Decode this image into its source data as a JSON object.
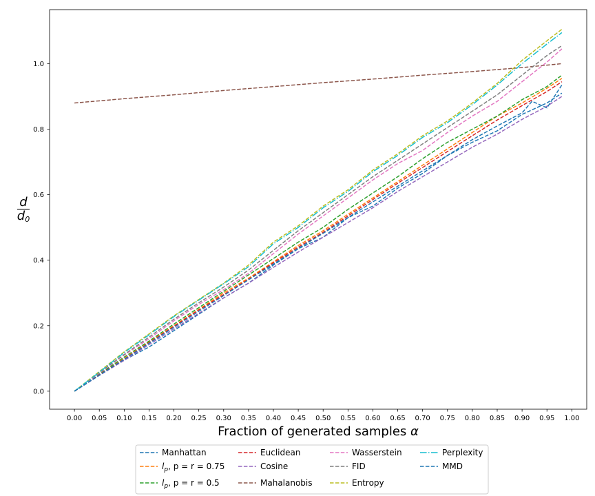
{
  "chart_data": {
    "type": "line",
    "xlabel": "Fraction of generated samples α",
    "ylabel_num": "d",
    "ylabel_den": "d",
    "ylabel_den_sub": "0",
    "xlim": [
      -0.05,
      1.03
    ],
    "ylim": [
      -0.055,
      1.165
    ],
    "xticks": [
      "0.00",
      "0.05",
      "0.10",
      "0.15",
      "0.20",
      "0.25",
      "0.30",
      "0.35",
      "0.40",
      "0.45",
      "0.50",
      "0.55",
      "0.60",
      "0.65",
      "0.70",
      "0.75",
      "0.80",
      "0.85",
      "0.90",
      "0.95",
      "1.00"
    ],
    "yticks": [
      "0.0",
      "0.2",
      "0.4",
      "0.6",
      "0.8",
      "1.0"
    ],
    "legend_position": "bottom-center, outside, 4 columns",
    "series": [
      {
        "name": "Manhattan",
        "color": "#1f77b4",
        "dash": "dashed",
        "x": [
          0,
          0.05,
          0.1,
          0.15,
          0.2,
          0.25,
          0.3,
          0.35,
          0.4,
          0.45,
          0.5,
          0.55,
          0.6,
          0.65,
          0.7,
          0.75,
          0.8,
          0.85,
          0.9,
          0.95,
          0.98
        ],
        "y": [
          0,
          0.05,
          0.095,
          0.135,
          0.185,
          0.235,
          0.285,
          0.33,
          0.385,
          0.435,
          0.47,
          0.53,
          0.565,
          0.62,
          0.665,
          0.72,
          0.76,
          0.795,
          0.845,
          0.88,
          0.91
        ]
      },
      {
        "name": "l_p, p = r = 0.75",
        "label_main": "l",
        "label_sub": "p",
        "label_rest": ", p = r = 0.75",
        "color": "#ff7f0e",
        "dash": "dashed",
        "x": [
          0,
          0.05,
          0.1,
          0.15,
          0.2,
          0.25,
          0.3,
          0.35,
          0.4,
          0.45,
          0.5,
          0.55,
          0.6,
          0.65,
          0.7,
          0.75,
          0.8,
          0.85,
          0.9,
          0.95,
          0.98
        ],
        "y": [
          0,
          0.05,
          0.1,
          0.15,
          0.2,
          0.25,
          0.3,
          0.345,
          0.395,
          0.445,
          0.49,
          0.54,
          0.59,
          0.64,
          0.69,
          0.74,
          0.79,
          0.84,
          0.88,
          0.925,
          0.955
        ]
      },
      {
        "name": "l_p, p = r = 0.5",
        "label_main": "l",
        "label_sub": "p",
        "label_rest": ", p = r = 0.5",
        "color": "#2ca02c",
        "dash": "dashed",
        "x": [
          0,
          0.05,
          0.1,
          0.15,
          0.2,
          0.25,
          0.3,
          0.35,
          0.4,
          0.45,
          0.5,
          0.55,
          0.6,
          0.65,
          0.7,
          0.75,
          0.8,
          0.85,
          0.9,
          0.95,
          0.98
        ],
        "y": [
          0,
          0.052,
          0.104,
          0.153,
          0.205,
          0.255,
          0.305,
          0.355,
          0.405,
          0.455,
          0.5,
          0.555,
          0.605,
          0.655,
          0.71,
          0.76,
          0.8,
          0.84,
          0.89,
          0.93,
          0.965
        ]
      },
      {
        "name": "Euclidean",
        "color": "#d62728",
        "dash": "dashed",
        "x": [
          0,
          0.05,
          0.1,
          0.15,
          0.2,
          0.25,
          0.3,
          0.35,
          0.4,
          0.45,
          0.5,
          0.55,
          0.6,
          0.65,
          0.7,
          0.75,
          0.8,
          0.85,
          0.9,
          0.95,
          0.98
        ],
        "y": [
          0,
          0.05,
          0.098,
          0.148,
          0.198,
          0.248,
          0.295,
          0.342,
          0.392,
          0.44,
          0.485,
          0.535,
          0.585,
          0.635,
          0.683,
          0.732,
          0.78,
          0.828,
          0.872,
          0.915,
          0.945
        ]
      },
      {
        "name": "Cosine",
        "color": "#9467bd",
        "dash": "dashed",
        "x": [
          0,
          0.05,
          0.1,
          0.15,
          0.2,
          0.25,
          0.3,
          0.35,
          0.4,
          0.45,
          0.5,
          0.55,
          0.6,
          0.65,
          0.7,
          0.75,
          0.8,
          0.85,
          0.9,
          0.95,
          0.98
        ],
        "y": [
          0,
          0.048,
          0.094,
          0.142,
          0.19,
          0.238,
          0.285,
          0.33,
          0.378,
          0.425,
          0.47,
          0.515,
          0.56,
          0.61,
          0.655,
          0.7,
          0.745,
          0.785,
          0.83,
          0.87,
          0.9
        ]
      },
      {
        "name": "Mahalanobis",
        "color": "#8c564b",
        "dash": "dashed",
        "x": [
          0,
          0.1,
          0.2,
          0.3,
          0.4,
          0.5,
          0.6,
          0.7,
          0.8,
          0.9,
          0.98
        ],
        "y": [
          0.88,
          0.893,
          0.905,
          0.918,
          0.93,
          0.942,
          0.953,
          0.965,
          0.976,
          0.988,
          1.0
        ]
      },
      {
        "name": "Wasserstein",
        "color": "#e377c2",
        "dash": "dashed",
        "x": [
          0,
          0.05,
          0.1,
          0.15,
          0.2,
          0.25,
          0.3,
          0.35,
          0.4,
          0.45,
          0.5,
          0.55,
          0.6,
          0.65,
          0.7,
          0.75,
          0.8,
          0.85,
          0.9,
          0.95,
          0.98
        ],
        "y": [
          0,
          0.055,
          0.11,
          0.16,
          0.215,
          0.265,
          0.31,
          0.36,
          0.42,
          0.48,
          0.535,
          0.59,
          0.645,
          0.695,
          0.735,
          0.79,
          0.84,
          0.885,
          0.945,
          1.005,
          1.045
        ]
      },
      {
        "name": "FID",
        "color": "#7f7f7f",
        "dash": "dashed",
        "x": [
          0,
          0.05,
          0.1,
          0.15,
          0.2,
          0.25,
          0.3,
          0.35,
          0.4,
          0.45,
          0.5,
          0.55,
          0.6,
          0.65,
          0.7,
          0.75,
          0.8,
          0.85,
          0.9,
          0.95,
          0.98
        ],
        "y": [
          0,
          0.057,
          0.112,
          0.165,
          0.22,
          0.27,
          0.318,
          0.37,
          0.43,
          0.49,
          0.545,
          0.6,
          0.655,
          0.705,
          0.755,
          0.805,
          0.855,
          0.905,
          0.965,
          1.025,
          1.055
        ]
      },
      {
        "name": "Entropy",
        "color": "#bcbd22",
        "dash": "dashed",
        "x": [
          0,
          0.05,
          0.1,
          0.15,
          0.2,
          0.25,
          0.3,
          0.35,
          0.4,
          0.45,
          0.5,
          0.55,
          0.6,
          0.65,
          0.7,
          0.75,
          0.8,
          0.85,
          0.9,
          0.95,
          0.98
        ],
        "y": [
          0,
          0.06,
          0.12,
          0.175,
          0.23,
          0.28,
          0.33,
          0.385,
          0.455,
          0.505,
          0.565,
          0.615,
          0.675,
          0.725,
          0.78,
          0.825,
          0.88,
          0.94,
          1.01,
          1.07,
          1.105
        ]
      },
      {
        "name": "Perplexity",
        "color": "#17becf",
        "dash": "dashdot",
        "x": [
          0,
          0.05,
          0.1,
          0.15,
          0.2,
          0.25,
          0.3,
          0.35,
          0.4,
          0.45,
          0.5,
          0.55,
          0.6,
          0.65,
          0.7,
          0.75,
          0.8,
          0.85,
          0.9,
          0.95,
          0.98
        ],
        "y": [
          0,
          0.058,
          0.118,
          0.172,
          0.228,
          0.278,
          0.328,
          0.38,
          0.45,
          0.5,
          0.56,
          0.61,
          0.67,
          0.72,
          0.775,
          0.82,
          0.875,
          0.935,
          1.0,
          1.06,
          1.095
        ]
      },
      {
        "name": "MMD",
        "color": "#1f77b4",
        "dash": "dashed",
        "x": [
          0,
          0.05,
          0.1,
          0.15,
          0.2,
          0.25,
          0.3,
          0.35,
          0.4,
          0.45,
          0.5,
          0.55,
          0.6,
          0.65,
          0.7,
          0.75,
          0.8,
          0.85,
          0.9,
          0.92,
          0.95,
          0.98
        ],
        "y": [
          0,
          0.049,
          0.097,
          0.146,
          0.195,
          0.244,
          0.292,
          0.34,
          0.388,
          0.436,
          0.482,
          0.53,
          0.578,
          0.626,
          0.673,
          0.72,
          0.768,
          0.81,
          0.85,
          0.885,
          0.865,
          0.935
        ]
      }
    ]
  }
}
